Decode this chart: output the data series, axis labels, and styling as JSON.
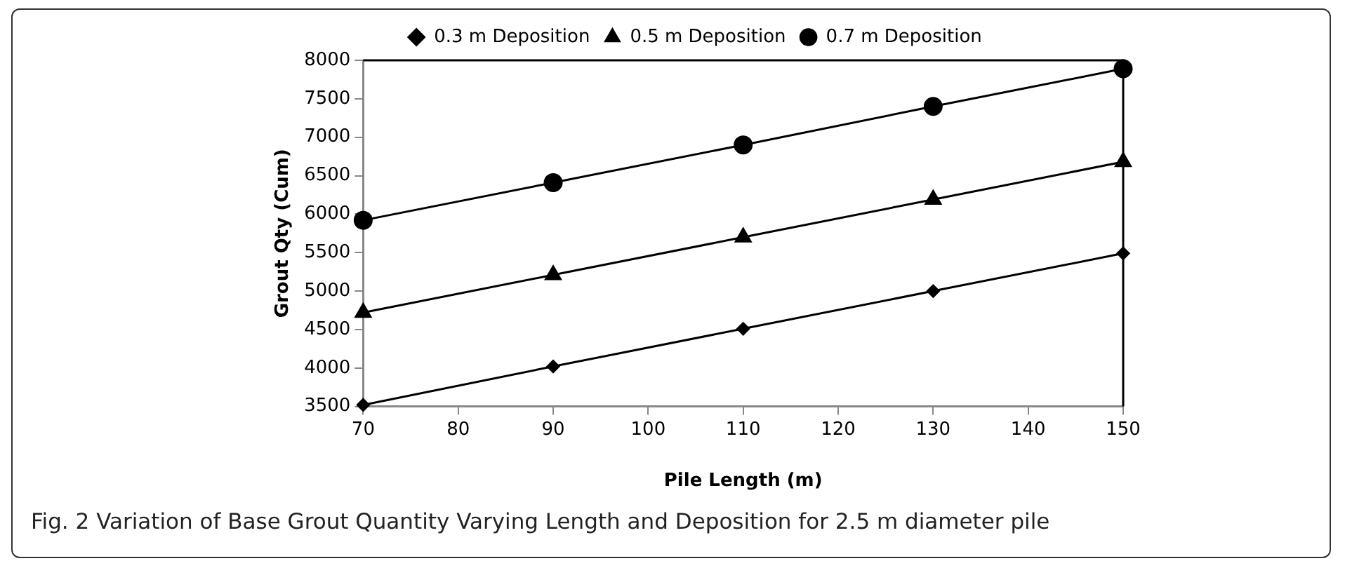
{
  "chart_data": {
    "type": "line",
    "xlabel": "Pile Length (m)",
    "ylabel": "Grout Qty (Cum)",
    "x": [
      70,
      90,
      110,
      130,
      150
    ],
    "series": [
      {
        "name": "0.3 m Deposition",
        "color": "#000000",
        "marker": "diamond",
        "values": [
          3520,
          4020,
          4510,
          5000,
          5490
        ]
      },
      {
        "name": "0.5 m Deposition",
        "color": "#000000",
        "marker": "triangle",
        "values": [
          4720,
          5210,
          5700,
          6190,
          6680
        ]
      },
      {
        "name": "0.7 m Deposition",
        "color": "#000000",
        "marker": "circle",
        "values": [
          5920,
          6410,
          6900,
          7400,
          7890
        ]
      }
    ],
    "xlim": [
      70,
      150
    ],
    "xticks": [
      70,
      80,
      90,
      100,
      110,
      120,
      130,
      140,
      150
    ],
    "ylim": [
      3500,
      8000
    ],
    "yticks": [
      3500,
      4000,
      4500,
      5000,
      5500,
      6000,
      6500,
      7000,
      7500,
      8000
    ],
    "grid": false,
    "legend": "top",
    "line_style": "solid",
    "annotations": [
      "Fig. 2 Variation of Base Grout Quantity Varying Length and Deposition for 2.5 m diameter pile"
    ]
  }
}
